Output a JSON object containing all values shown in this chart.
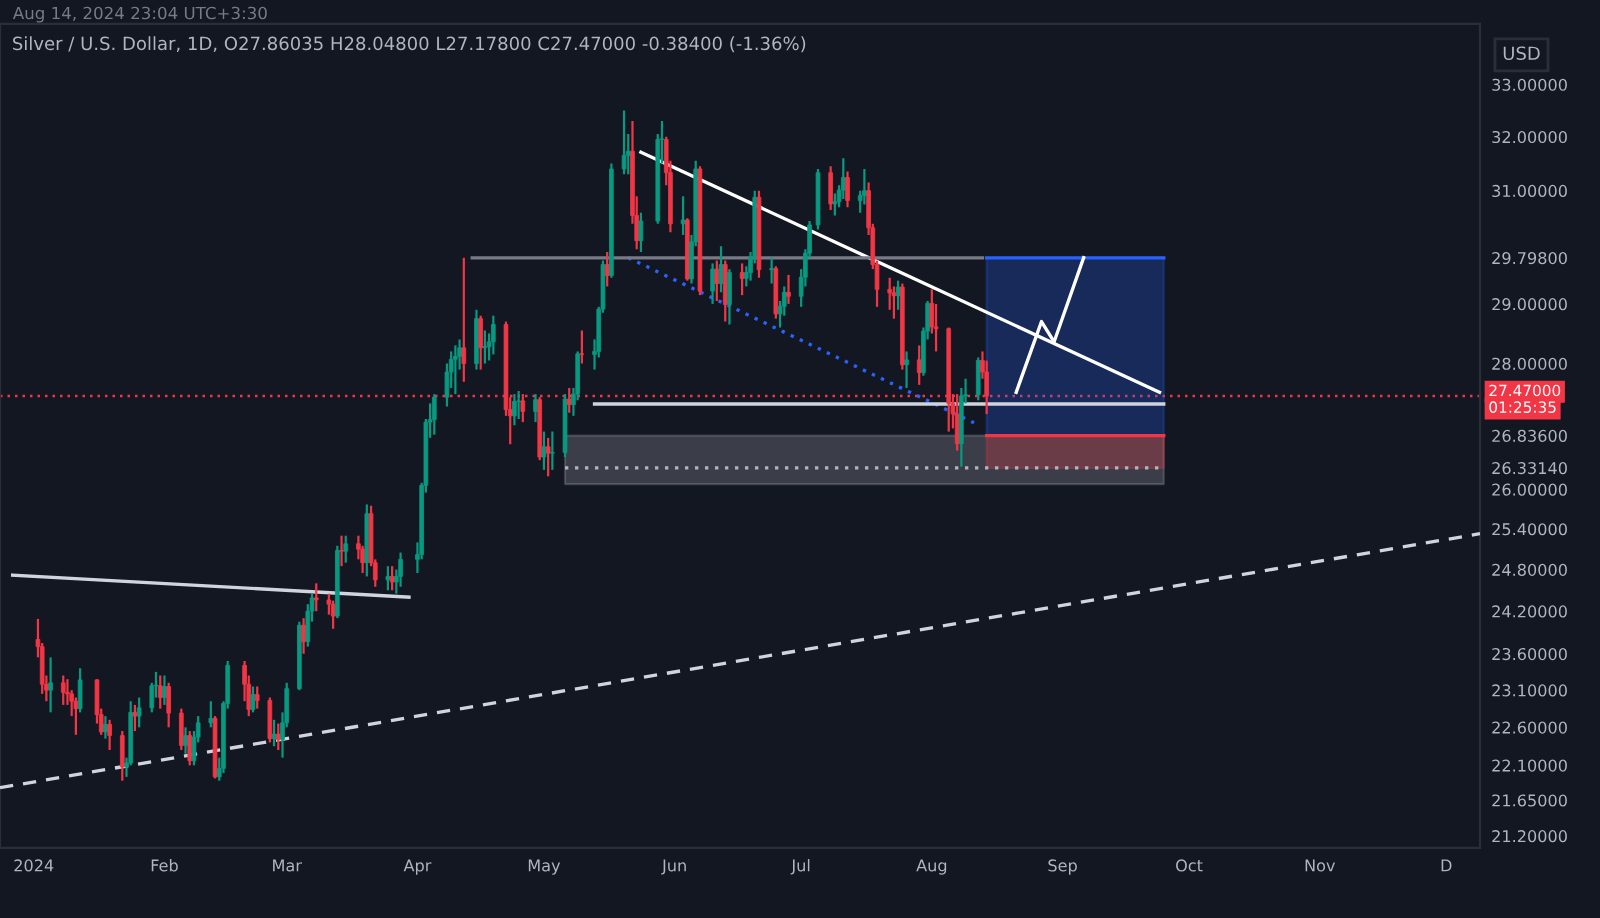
{
  "chart_data": {
    "type": "candlestick",
    "title": "Silver / U.S. Dollar, 1D, O27.86035 H28.04800 L27.17800 C27.47000 -0.38400 (-1.36%)",
    "subtitle": "Aug 14, 2024 23:04 UTC+3:30",
    "ylabel": "USD",
    "annotations": [
      "01:25:35"
    ],
    "log": "y",
    "grid": false,
    "xlim": [
      "2023-12-24",
      "2024-12-09"
    ],
    "xticks": [
      {
        "value": "2024-01-01",
        "label": "2024"
      },
      {
        "value": "2024-02-01",
        "label": "Feb"
      },
      {
        "value": "2024-03-01",
        "label": "Mar"
      },
      {
        "value": "2024-04-01",
        "label": "Apr"
      },
      {
        "value": "2024-05-01",
        "label": "May"
      },
      {
        "value": "2024-06-01",
        "label": "Jun"
      },
      {
        "value": "2024-07-01",
        "label": "Jul"
      },
      {
        "value": "2024-08-01",
        "label": "Aug"
      },
      {
        "value": "2024-09-01",
        "label": "Sep"
      },
      {
        "value": "2024-10-01",
        "label": "Oct"
      },
      {
        "value": "2024-11-01",
        "label": "Nov"
      },
      {
        "value": "2024-12-01",
        "label": "D"
      }
    ],
    "ylim": [
      21.05,
      34.2
    ],
    "yticks": [
      {
        "value": 33,
        "label": "33.00000"
      },
      {
        "value": 32,
        "label": "32.00000"
      },
      {
        "value": 31,
        "label": "31.00000"
      },
      {
        "value": 29.798,
        "label": "29.79800"
      },
      {
        "value": 29,
        "label": "29.00000"
      },
      {
        "value": 28,
        "label": "28.00000"
      },
      {
        "value": 26.836,
        "label": "26.83600"
      },
      {
        "value": 26.3314,
        "label": "26.33140"
      },
      {
        "value": 26,
        "label": "26.00000"
      },
      {
        "value": 25.4,
        "label": "25.40000"
      },
      {
        "value": 24.8,
        "label": "24.80000"
      },
      {
        "value": 24.2,
        "label": "24.20000"
      },
      {
        "value": 23.6,
        "label": "23.60000"
      },
      {
        "value": 23.1,
        "label": "23.10000"
      },
      {
        "value": 22.6,
        "label": "22.60000"
      },
      {
        "value": 22.1,
        "label": "22.10000"
      },
      {
        "value": 21.65,
        "label": "21.65000"
      },
      {
        "value": 21.2,
        "label": "21.20000"
      }
    ],
    "ref_lines": [
      {
        "axis": "y",
        "value": 27.47,
        "label": "27.47000",
        "color": "#f23645",
        "line_style": "dotted"
      }
    ],
    "series": [
      {
        "x": [
          "2024-01-02",
          "2024-01-03",
          "2024-01-04",
          "2024-01-05",
          "2024-01-08",
          "2024-01-09",
          "2024-01-10",
          "2024-01-11",
          "2024-01-12",
          "2024-01-16",
          "2024-01-17",
          "2024-01-18",
          "2024-01-19",
          "2024-01-22",
          "2024-01-23",
          "2024-01-24",
          "2024-01-25",
          "2024-01-26",
          "2024-01-29",
          "2024-01-30",
          "2024-01-31",
          "2024-02-01",
          "2024-02-02",
          "2024-02-05",
          "2024-02-06",
          "2024-02-07",
          "2024-02-08",
          "2024-02-09",
          "2024-02-12",
          "2024-02-13",
          "2024-02-14",
          "2024-02-15",
          "2024-02-16",
          "2024-02-20",
          "2024-02-21",
          "2024-02-22",
          "2024-02-23",
          "2024-02-26",
          "2024-02-27",
          "2024-02-28",
          "2024-02-29",
          "2024-03-01",
          "2024-03-04",
          "2024-03-05",
          "2024-03-06",
          "2024-03-07",
          "2024-03-08",
          "2024-03-11",
          "2024-03-12",
          "2024-03-13",
          "2024-03-14",
          "2024-03-15",
          "2024-03-18",
          "2024-03-19",
          "2024-03-20",
          "2024-03-21",
          "2024-03-22",
          "2024-03-25",
          "2024-03-26",
          "2024-03-27",
          "2024-03-28",
          "2024-04-01",
          "2024-04-02",
          "2024-04-03",
          "2024-04-04",
          "2024-04-05",
          "2024-04-08",
          "2024-04-09",
          "2024-04-10",
          "2024-04-11",
          "2024-04-12",
          "2024-04-15",
          "2024-04-16",
          "2024-04-17",
          "2024-04-18",
          "2024-04-19",
          "2024-04-22",
          "2024-04-23",
          "2024-04-24",
          "2024-04-25",
          "2024-04-26",
          "2024-04-29",
          "2024-04-30",
          "2024-05-01",
          "2024-05-02",
          "2024-05-03",
          "2024-05-06",
          "2024-05-07",
          "2024-05-08",
          "2024-05-09",
          "2024-05-10",
          "2024-05-13",
          "2024-05-14",
          "2024-05-15",
          "2024-05-16",
          "2024-05-17",
          "2024-05-20",
          "2024-05-21",
          "2024-05-22",
          "2024-05-23",
          "2024-05-24",
          "2024-05-28",
          "2024-05-29",
          "2024-05-30",
          "2024-05-31",
          "2024-06-03",
          "2024-06-04",
          "2024-06-05",
          "2024-06-06",
          "2024-06-07",
          "2024-06-10",
          "2024-06-11",
          "2024-06-12",
          "2024-06-13",
          "2024-06-14",
          "2024-06-17",
          "2024-06-18",
          "2024-06-19",
          "2024-06-20",
          "2024-06-21",
          "2024-06-24",
          "2024-06-25",
          "2024-06-26",
          "2024-06-27",
          "2024-06-28",
          "2024-07-01",
          "2024-07-02",
          "2024-07-03",
          "2024-07-05",
          "2024-07-08",
          "2024-07-09",
          "2024-07-10",
          "2024-07-11",
          "2024-07-12",
          "2024-07-15",
          "2024-07-16",
          "2024-07-17",
          "2024-07-18",
          "2024-07-19",
          "2024-07-22",
          "2024-07-23",
          "2024-07-24",
          "2024-07-25",
          "2024-07-26",
          "2024-07-29",
          "2024-07-30",
          "2024-07-31",
          "2024-08-01",
          "2024-08-02",
          "2024-08-05",
          "2024-08-06",
          "2024-08-07",
          "2024-08-08",
          "2024-08-09",
          "2024-08-12",
          "2024-08-13",
          "2024-08-14"
        ],
        "ohlc": [
          [
            23.8,
            24.09,
            23.55,
            23.7
          ],
          [
            23.7,
            23.75,
            23.05,
            23.18
          ],
          [
            23.18,
            23.3,
            22.95,
            23.1
          ],
          [
            23.1,
            23.55,
            22.8,
            23.2
          ],
          [
            23.2,
            23.3,
            22.9,
            23.07
          ],
          [
            23.07,
            23.25,
            22.9,
            23.05
          ],
          [
            23.05,
            23.1,
            22.75,
            22.95
          ],
          [
            22.95,
            23.0,
            22.5,
            22.85
          ],
          [
            22.85,
            23.4,
            22.8,
            23.24
          ],
          [
            23.24,
            23.25,
            22.65,
            22.77
          ],
          [
            22.77,
            22.85,
            22.5,
            22.54
          ],
          [
            22.54,
            22.75,
            22.45,
            22.64
          ],
          [
            22.64,
            22.7,
            22.3,
            22.49
          ],
          [
            22.49,
            22.55,
            21.9,
            22.08
          ],
          [
            22.08,
            22.2,
            21.95,
            22.13
          ],
          [
            22.13,
            22.95,
            22.1,
            22.8
          ],
          [
            22.8,
            22.9,
            22.55,
            22.75
          ],
          [
            22.75,
            23.0,
            22.6,
            22.86
          ],
          [
            22.86,
            23.2,
            22.8,
            23.16
          ],
          [
            23.16,
            23.35,
            23.0,
            23.16
          ],
          [
            23.16,
            23.3,
            22.85,
            23.0
          ],
          [
            23.0,
            23.3,
            22.9,
            23.15
          ],
          [
            23.15,
            23.2,
            22.6,
            22.79
          ],
          [
            22.79,
            22.85,
            22.3,
            22.36
          ],
          [
            22.36,
            22.6,
            22.25,
            22.49
          ],
          [
            22.49,
            22.55,
            22.1,
            22.16
          ],
          [
            22.16,
            22.55,
            22.1,
            22.47
          ],
          [
            22.47,
            22.75,
            22.4,
            22.66
          ],
          [
            22.66,
            22.95,
            22.6,
            22.72
          ],
          [
            22.72,
            22.75,
            21.93,
            21.95
          ],
          [
            21.95,
            22.2,
            21.9,
            22.06
          ],
          [
            22.06,
            22.95,
            22.0,
            22.92
          ],
          [
            22.92,
            23.5,
            22.85,
            23.44
          ],
          [
            23.44,
            23.5,
            22.95,
            23.18
          ],
          [
            23.18,
            23.3,
            22.75,
            22.84
          ],
          [
            22.84,
            23.15,
            22.8,
            23.04
          ],
          [
            23.04,
            23.15,
            22.85,
            22.96
          ],
          [
            22.96,
            23.0,
            22.4,
            22.45
          ],
          [
            22.45,
            22.7,
            22.35,
            22.51
          ],
          [
            22.51,
            22.65,
            22.3,
            22.44
          ],
          [
            22.44,
            22.8,
            22.2,
            22.66
          ],
          [
            22.66,
            23.2,
            22.6,
            23.12
          ],
          [
            23.12,
            24.05,
            23.1,
            24.0
          ],
          [
            24.0,
            24.1,
            23.6,
            23.77
          ],
          [
            23.77,
            24.3,
            23.7,
            24.2
          ],
          [
            24.2,
            24.45,
            24.05,
            24.39
          ],
          [
            24.39,
            24.6,
            24.2,
            24.36
          ],
          [
            24.36,
            24.45,
            24.15,
            24.3
          ],
          [
            24.3,
            24.35,
            23.95,
            24.13
          ],
          [
            24.13,
            25.15,
            24.1,
            25.08
          ],
          [
            25.08,
            25.3,
            24.85,
            25.07
          ],
          [
            25.07,
            25.3,
            24.9,
            25.18
          ],
          [
            25.18,
            25.3,
            24.95,
            25.1
          ],
          [
            25.1,
            25.15,
            24.75,
            24.9
          ],
          [
            24.9,
            25.77,
            24.7,
            25.63
          ],
          [
            25.63,
            25.75,
            24.85,
            24.9
          ],
          [
            24.9,
            24.95,
            24.55,
            24.65
          ],
          [
            24.65,
            24.85,
            24.5,
            24.7
          ],
          [
            24.7,
            24.85,
            24.5,
            24.62
          ],
          [
            24.62,
            24.8,
            24.45,
            24.7
          ],
          [
            24.7,
            25.05,
            24.55,
            24.95
          ],
          [
            24.95,
            25.2,
            24.75,
            25.02
          ],
          [
            25.02,
            26.1,
            24.95,
            26.06
          ],
          [
            26.06,
            27.1,
            25.95,
            27.05
          ],
          [
            27.05,
            27.35,
            26.8,
            27.09
          ],
          [
            27.09,
            27.5,
            26.85,
            27.45
          ],
          [
            27.45,
            28.0,
            27.3,
            27.86
          ],
          [
            27.86,
            28.2,
            27.6,
            28.07
          ],
          [
            28.07,
            28.3,
            27.5,
            28.12
          ],
          [
            28.12,
            28.4,
            27.9,
            28.26
          ],
          [
            28.26,
            29.798,
            27.7,
            28.0
          ],
          [
            28.0,
            28.9,
            27.9,
            28.75
          ],
          [
            28.75,
            28.8,
            27.9,
            28.26
          ],
          [
            28.26,
            28.55,
            28.0,
            28.28
          ],
          [
            28.28,
            28.5,
            28.05,
            28.36
          ],
          [
            28.36,
            28.8,
            28.15,
            28.65
          ],
          [
            28.65,
            28.7,
            27.15,
            27.25
          ],
          [
            27.25,
            27.45,
            26.7,
            27.15
          ],
          [
            27.15,
            27.5,
            27.0,
            27.38
          ],
          [
            27.38,
            27.55,
            27.1,
            27.39
          ],
          [
            27.39,
            27.5,
            27.05,
            27.22
          ],
          [
            27.22,
            27.5,
            27.05,
            27.41
          ],
          [
            27.41,
            27.45,
            26.45,
            26.5
          ],
          [
            26.5,
            26.9,
            26.3,
            26.66
          ],
          [
            26.66,
            26.8,
            26.2,
            26.56
          ],
          [
            26.56,
            26.9,
            26.3,
            26.57
          ],
          [
            26.57,
            27.5,
            26.5,
            27.42
          ],
          [
            27.42,
            27.6,
            27.2,
            27.33
          ],
          [
            27.33,
            27.6,
            27.15,
            27.5
          ],
          [
            27.5,
            28.2,
            27.4,
            28.16
          ],
          [
            28.16,
            28.55,
            28.0,
            28.15
          ],
          [
            28.15,
            28.4,
            27.9,
            28.2
          ],
          [
            28.2,
            28.95,
            28.1,
            28.91
          ],
          [
            28.91,
            29.75,
            28.85,
            29.68
          ],
          [
            29.68,
            29.9,
            29.3,
            29.49
          ],
          [
            29.49,
            31.5,
            29.45,
            31.4
          ],
          [
            31.4,
            32.5,
            31.3,
            31.65
          ],
          [
            31.65,
            32.05,
            31.3,
            31.73
          ],
          [
            31.73,
            32.3,
            30.4,
            30.55
          ],
          [
            30.55,
            30.9,
            29.95,
            30.1
          ],
          [
            30.1,
            30.6,
            29.9,
            30.45
          ],
          [
            30.45,
            32.05,
            30.4,
            31.95
          ],
          [
            31.95,
            32.3,
            31.5,
            31.95
          ],
          [
            31.95,
            32.0,
            31.1,
            31.33
          ],
          [
            31.33,
            31.55,
            30.25,
            30.4
          ],
          [
            30.4,
            30.9,
            30.2,
            30.47
          ],
          [
            30.47,
            30.5,
            29.4,
            29.43
          ],
          [
            29.43,
            30.2,
            29.35,
            30.08
          ],
          [
            30.08,
            31.55,
            30.0,
            31.4
          ],
          [
            31.4,
            31.45,
            29.15,
            29.22
          ],
          [
            29.22,
            29.7,
            29.0,
            29.6
          ],
          [
            29.6,
            29.75,
            29.05,
            29.35
          ],
          [
            29.35,
            30.0,
            29.2,
            29.68
          ],
          [
            29.68,
            29.75,
            28.7,
            28.99
          ],
          [
            28.99,
            29.6,
            28.65,
            29.54
          ],
          [
            29.54,
            29.7,
            29.15,
            29.44
          ],
          [
            29.44,
            29.65,
            29.3,
            29.54
          ],
          [
            29.54,
            29.9,
            29.4,
            29.8
          ],
          [
            29.8,
            31.0,
            29.7,
            30.88
          ],
          [
            30.88,
            31.0,
            29.45,
            29.59
          ],
          [
            29.59,
            29.8,
            29.35,
            29.61
          ],
          [
            29.61,
            29.65,
            28.75,
            28.83
          ],
          [
            28.83,
            29.05,
            28.6,
            28.96
          ],
          [
            28.96,
            29.3,
            28.8,
            29.2
          ],
          [
            29.2,
            29.5,
            29.0,
            29.13
          ],
          [
            29.13,
            29.6,
            28.95,
            29.46
          ],
          [
            29.46,
            29.95,
            29.3,
            29.88
          ],
          [
            29.88,
            30.45,
            29.8,
            30.38
          ],
          [
            30.38,
            31.4,
            30.3,
            31.33
          ],
          [
            31.33,
            31.45,
            30.65,
            30.76
          ],
          [
            30.76,
            30.95,
            30.55,
            30.8
          ],
          [
            30.8,
            31.1,
            30.7,
            31.01
          ],
          [
            31.01,
            31.6,
            30.85,
            31.24
          ],
          [
            31.24,
            31.35,
            30.7,
            30.82
          ],
          [
            30.82,
            31.0,
            30.6,
            30.91
          ],
          [
            30.91,
            31.4,
            30.75,
            31.0
          ],
          [
            31.0,
            31.15,
            30.2,
            30.33
          ],
          [
            30.33,
            30.4,
            29.6,
            29.68
          ],
          [
            29.68,
            29.75,
            28.95,
            29.25
          ],
          [
            29.25,
            29.45,
            28.9,
            29.19
          ],
          [
            29.19,
            29.3,
            28.75,
            29.14
          ],
          [
            29.14,
            29.4,
            28.9,
            29.29
          ],
          [
            29.29,
            29.35,
            27.9,
            27.98
          ],
          [
            27.98,
            28.2,
            27.6,
            28.06
          ],
          [
            28.06,
            28.3,
            27.65,
            27.85
          ],
          [
            27.85,
            28.6,
            27.8,
            28.54
          ],
          [
            28.54,
            29.05,
            28.4,
            29.01
          ],
          [
            29.01,
            29.25,
            28.5,
            28.61
          ],
          [
            28.61,
            29.0,
            28.2,
            28.58
          ],
          [
            28.58,
            28.6,
            26.9,
            27.35
          ],
          [
            27.35,
            27.5,
            26.95,
            27.18
          ],
          [
            27.18,
            27.5,
            26.6,
            26.71
          ],
          [
            26.71,
            27.6,
            26.35,
            27.47
          ],
          [
            27.47,
            27.75,
            27.35,
            27.49
          ],
          [
            27.49,
            28.1,
            27.4,
            28.05
          ],
          [
            28.05,
            28.2,
            27.75,
            27.86
          ],
          [
            27.86035,
            28.048,
            27.178,
            27.47
          ]
        ]
      },
      {
        "type": "line",
        "color": "#ffffff",
        "x": [
          "2024-05-24",
          "2024-09-24"
        ],
        "values": [
          31.71,
          27.53
        ]
      },
      {
        "type": "line",
        "color": "#2962ff",
        "line_style": "dotted",
        "x": [
          "2024-05-21",
          "2024-08-11"
        ],
        "values": [
          29.8,
          27.04
        ]
      },
      {
        "type": "line",
        "color": "#d1d4dc",
        "x": [
          "2024-05-13",
          "2024-09-25"
        ],
        "values": [
          27.34,
          27.34
        ]
      },
      {
        "type": "line",
        "color": "#787b86",
        "x": [
          "2024-04-14",
          "2024-08-13"
        ],
        "values": [
          29.798,
          29.798
        ]
      },
      {
        "type": "line",
        "color": "#d1d4dc",
        "x": [
          "2023-12-27",
          "2024-03-30"
        ],
        "values": [
          24.72,
          24.4
        ]
      },
      {
        "type": "line",
        "color": "#d1d4dc",
        "line_style": "dashed",
        "x": [
          "2023-12-24",
          "2024-12-09"
        ],
        "values": [
          21.81,
          25.33
        ]
      },
      {
        "type": "line",
        "color": "#b2b5be",
        "line_style": "dotted",
        "x": [
          "2024-05-06",
          "2024-09-25"
        ],
        "values": [
          26.3314,
          26.3314
        ],
        "lower": [
          26.08,
          26.08
        ],
        "upper": [
          26.836,
          26.836
        ]
      },
      {
        "type": "line",
        "color": "#2962ff",
        "x": [
          "2024-08-14",
          "2024-09-25"
        ],
        "values": [
          29.798,
          29.798
        ],
        "lower": [
          26.836,
          26.836
        ],
        "upper": [
          29.798,
          29.798
        ]
      },
      {
        "type": "line",
        "color": "#f23645",
        "x": [
          "2024-08-14",
          "2024-09-25"
        ],
        "values": [
          26.836,
          26.836
        ],
        "lower": [
          26.3314,
          26.3314
        ],
        "upper": [
          26.836,
          26.836
        ]
      },
      {
        "type": "line",
        "color": "#ffffff",
        "x": [
          "2024-08-21",
          "2024-08-27",
          "2024-08-30",
          "2024-09-06"
        ],
        "values": [
          27.53,
          28.7,
          28.36,
          29.8
        ]
      }
    ]
  }
}
